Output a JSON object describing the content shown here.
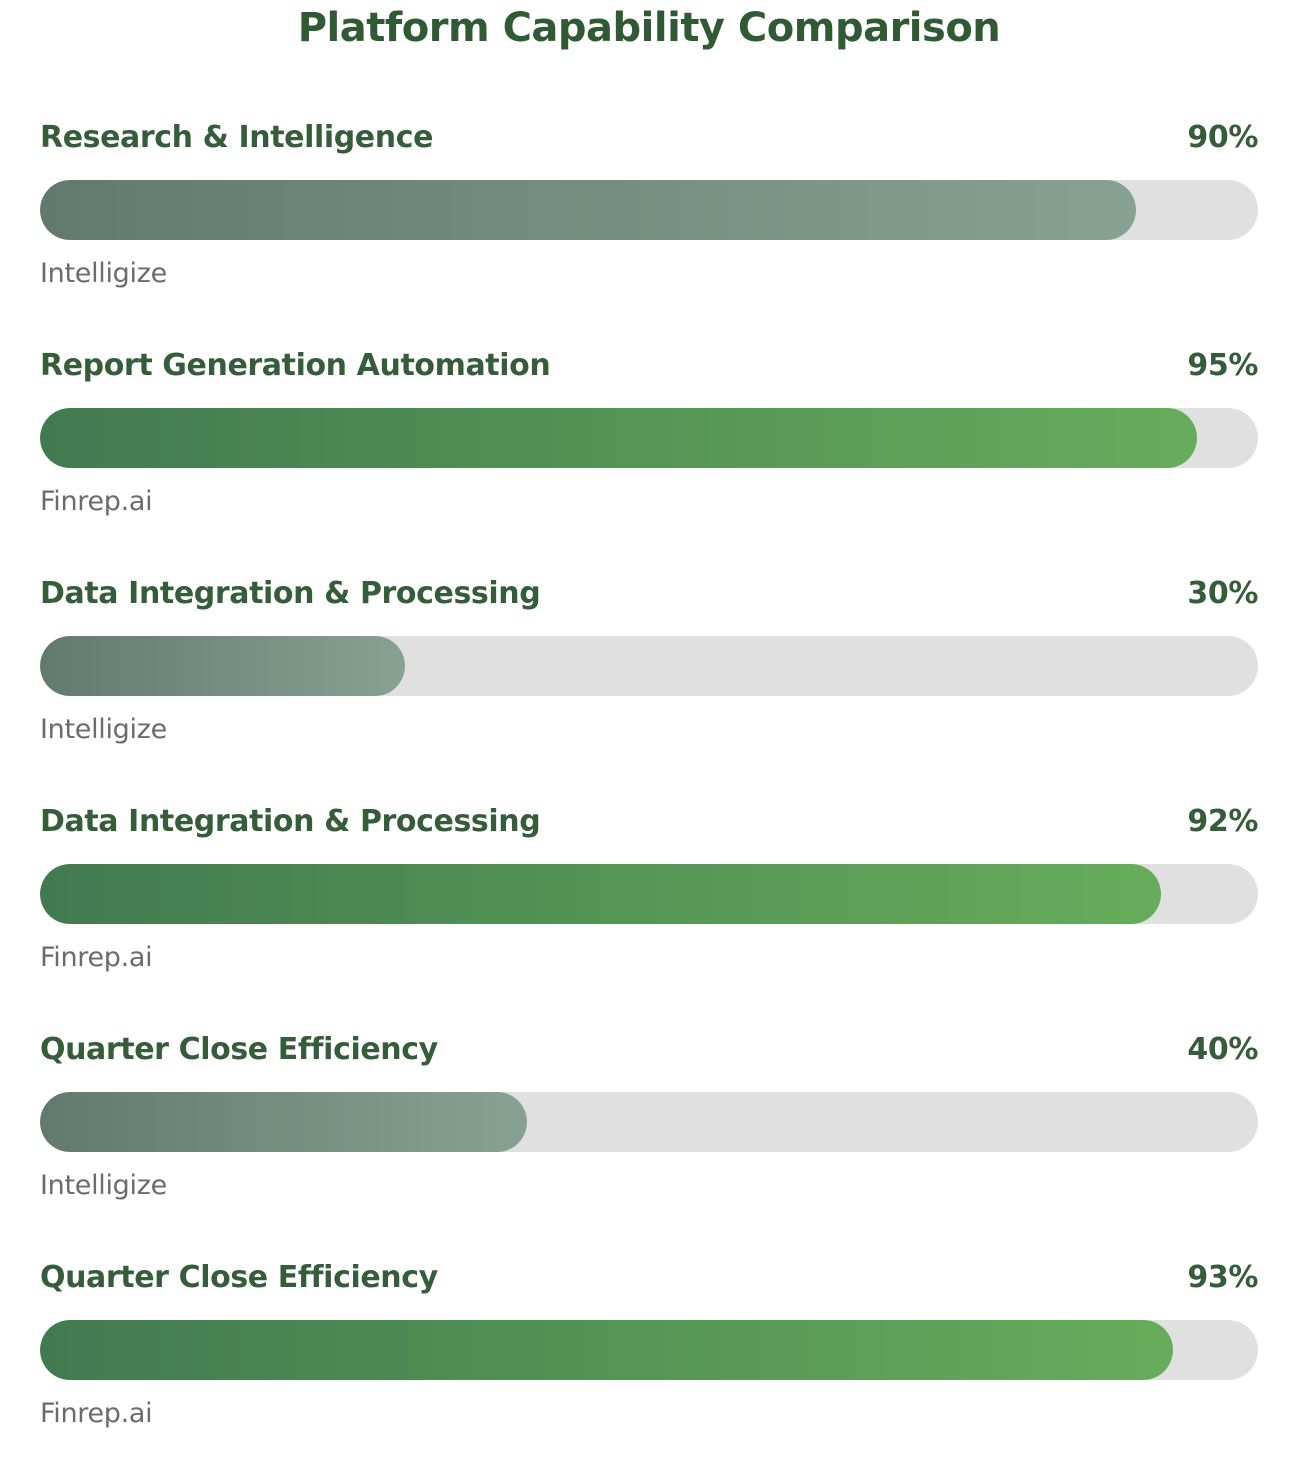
{
  "colors": {
    "title": "#2f5a34",
    "label": "#355d3a",
    "platform_text": "#6b6b6b",
    "track": "#e0e0e0",
    "intelligize_gradient": [
      "#627a6e",
      "#87a193"
    ],
    "finrep_gradient": [
      "#417a4f",
      "#66ad5b"
    ]
  },
  "chart_data": {
    "type": "bar",
    "orientation": "horizontal",
    "title": "Platform Capability Comparison",
    "value_unit": "%",
    "xlim": [
      0,
      100
    ],
    "grid": false,
    "rows": [
      {
        "category": "Research & Intelligence",
        "platform": "Intelligize",
        "value": 90,
        "value_label": "90%",
        "style": "gray"
      },
      {
        "category": "Report Generation Automation",
        "platform": "Finrep.ai",
        "value": 95,
        "value_label": "95%",
        "style": "green"
      },
      {
        "category": "Data Integration & Processing",
        "platform": "Intelligize",
        "value": 30,
        "value_label": "30%",
        "style": "gray"
      },
      {
        "category": "Data Integration & Processing",
        "platform": "Finrep.ai",
        "value": 92,
        "value_label": "92%",
        "style": "green"
      },
      {
        "category": "Quarter Close Efficiency",
        "platform": "Intelligize",
        "value": 40,
        "value_label": "40%",
        "style": "gray"
      },
      {
        "category": "Quarter Close Efficiency",
        "platform": "Finrep.ai",
        "value": 93,
        "value_label": "93%",
        "style": "green"
      }
    ]
  }
}
